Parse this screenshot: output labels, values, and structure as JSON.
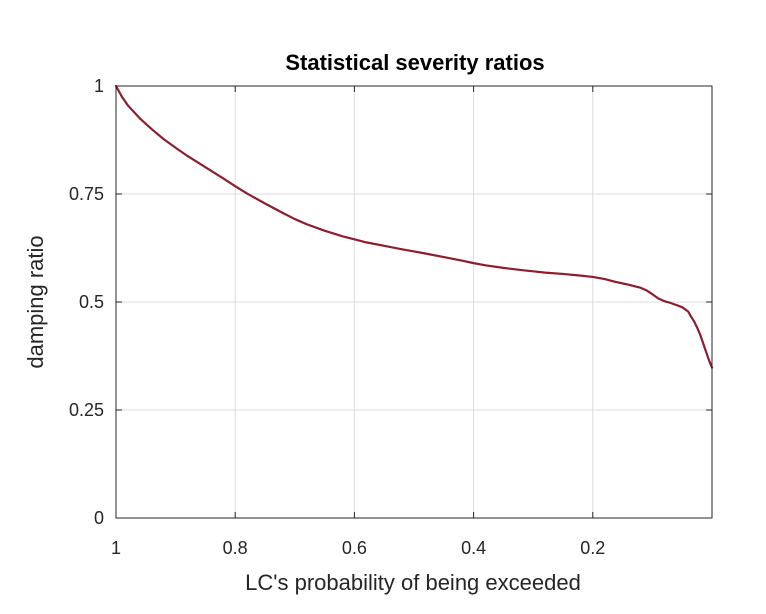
{
  "chart_data": {
    "type": "line",
    "title": "Statistical severity ratios",
    "xlabel": "LC's probability of being exceeded",
    "ylabel": "damping ratio",
    "xlim": [
      1,
      0
    ],
    "x_reversed": true,
    "ylim": [
      0,
      1
    ],
    "x_ticks": [
      1,
      0.8,
      0.6,
      0.4,
      0.2
    ],
    "x_tick_labels": [
      "1",
      "0.8",
      "0.6",
      "0.4",
      "0.2"
    ],
    "y_ticks": [
      0,
      0.25,
      0.5,
      0.75,
      1
    ],
    "y_tick_labels": [
      "0",
      "0.25",
      "0.5",
      "0.75",
      "1"
    ],
    "grid": true,
    "series": [
      {
        "color": "#8b1e2f",
        "x": [
          1.0,
          0.99,
          0.98,
          0.96,
          0.94,
          0.92,
          0.9,
          0.88,
          0.85,
          0.82,
          0.8,
          0.78,
          0.75,
          0.72,
          0.7,
          0.68,
          0.65,
          0.62,
          0.6,
          0.58,
          0.55,
          0.52,
          0.5,
          0.48,
          0.45,
          0.42,
          0.4,
          0.38,
          0.35,
          0.32,
          0.3,
          0.28,
          0.25,
          0.22,
          0.2,
          0.18,
          0.16,
          0.14,
          0.12,
          0.11,
          0.1,
          0.09,
          0.08,
          0.07,
          0.06,
          0.05,
          0.04,
          0.035,
          0.03,
          0.025,
          0.02,
          0.015,
          0.01,
          0.005,
          0.0
        ],
        "y": [
          1.0,
          0.975,
          0.955,
          0.925,
          0.9,
          0.877,
          0.857,
          0.838,
          0.812,
          0.786,
          0.768,
          0.751,
          0.728,
          0.706,
          0.692,
          0.68,
          0.665,
          0.652,
          0.645,
          0.638,
          0.63,
          0.622,
          0.617,
          0.612,
          0.604,
          0.596,
          0.59,
          0.585,
          0.579,
          0.574,
          0.571,
          0.568,
          0.565,
          0.561,
          0.558,
          0.553,
          0.546,
          0.54,
          0.533,
          0.527,
          0.518,
          0.508,
          0.502,
          0.498,
          0.493,
          0.488,
          0.478,
          0.466,
          0.455,
          0.441,
          0.425,
          0.405,
          0.385,
          0.365,
          0.348
        ]
      }
    ]
  }
}
